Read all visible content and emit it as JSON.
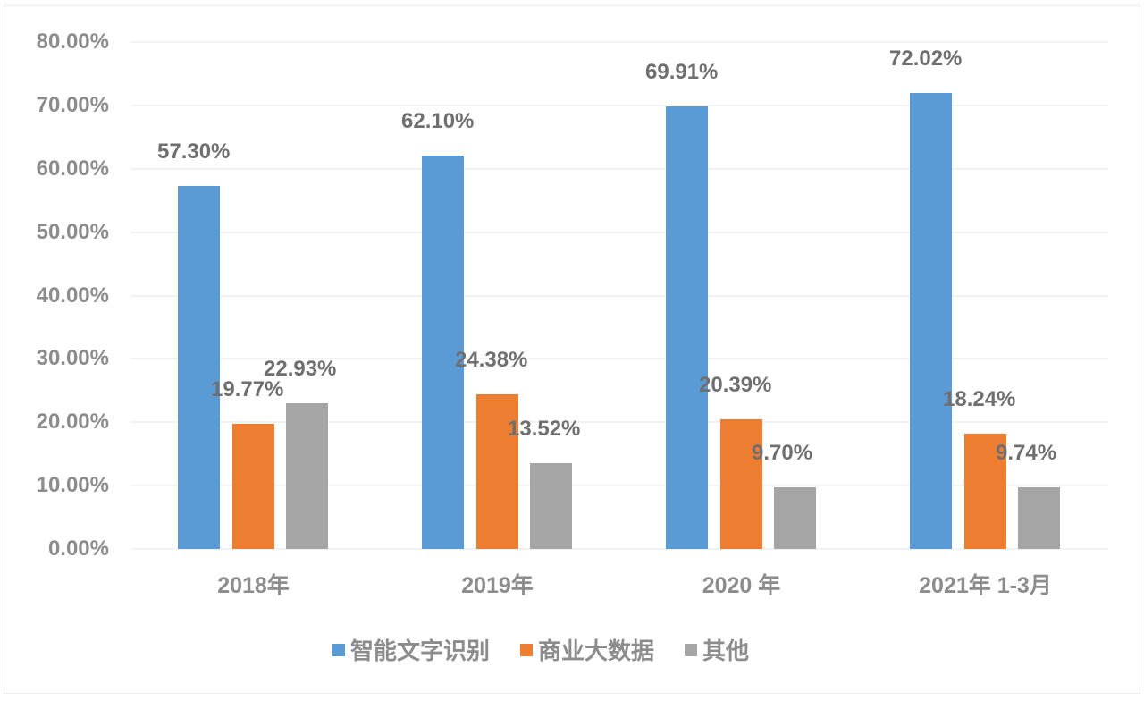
{
  "chart_data": {
    "type": "bar",
    "title": "",
    "xlabel": "",
    "ylabel": "",
    "ylim": [
      0,
      80
    ],
    "yticks": [
      "0.00%",
      "10.00%",
      "20.00%",
      "30.00%",
      "40.00%",
      "50.00%",
      "60.00%",
      "70.00%",
      "80.00%"
    ],
    "categories": [
      "2018年",
      "2019年",
      "2020 年",
      "2021年 1-3月"
    ],
    "series": [
      {
        "name": "智能文字识别",
        "color": "#5b9bd5",
        "values": [
          57.3,
          62.1,
          69.91,
          72.02
        ],
        "labels": [
          "57.30%",
          "62.10%",
          "69.91%",
          "72.02%"
        ]
      },
      {
        "name": "商业大数据",
        "color": "#ed7d31",
        "values": [
          19.77,
          24.38,
          20.39,
          18.24
        ],
        "labels": [
          "19.77%",
          "24.38%",
          "20.39%",
          "18.24%"
        ]
      },
      {
        "name": "其他",
        "color": "#a5a5a5",
        "values": [
          22.93,
          13.52,
          9.7,
          9.74
        ],
        "labels": [
          "22.93%",
          "13.52%",
          "9.70%",
          "9.74%"
        ]
      }
    ],
    "grid": true,
    "legend_position": "bottom"
  }
}
